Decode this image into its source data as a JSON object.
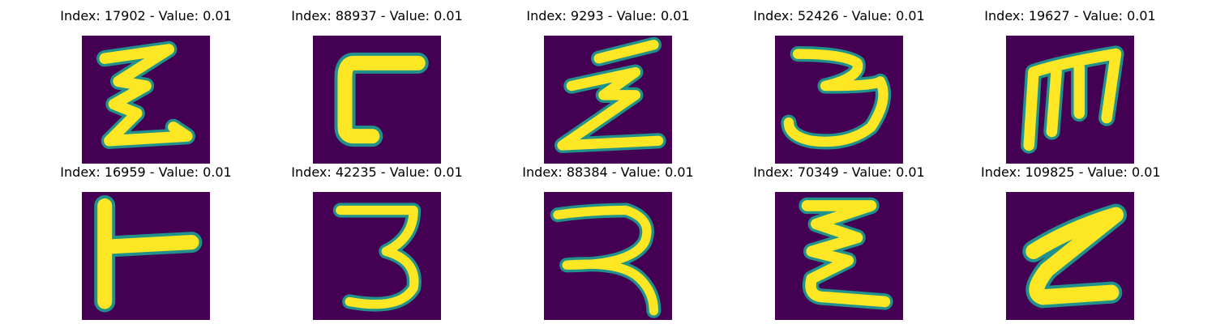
{
  "colors": {
    "background": "#440154",
    "stroke": "#fde725",
    "edge": "#21918c"
  },
  "panels": [
    {
      "title": "Index: 17902 - Value: 0.01",
      "glyph": "squiggle-e-icon"
    },
    {
      "title": "Index: 88937 - Value: 0.01",
      "glyph": "square-c-icon"
    },
    {
      "title": "Index: 9293 - Value: 0.01",
      "glyph": "zigzag-z-icon"
    },
    {
      "title": "Index: 52426 - Value: 0.01",
      "glyph": "digit-3-icon"
    },
    {
      "title": "Index: 19627 - Value: 0.01",
      "glyph": "letter-m-icon"
    },
    {
      "title": "Index: 16959 - Value: 0.01",
      "glyph": "t-bar-icon"
    },
    {
      "title": "Index: 42235 - Value: 0.01",
      "glyph": "digit-3-icon"
    },
    {
      "title": "Index: 88384 - Value: 0.01",
      "glyph": "r-shape-icon"
    },
    {
      "title": "Index: 70349 - Value: 0.01",
      "glyph": "squiggle-e-icon"
    },
    {
      "title": "Index: 109825 - Value: 0.01",
      "glyph": "slanted-z-icon"
    }
  ]
}
